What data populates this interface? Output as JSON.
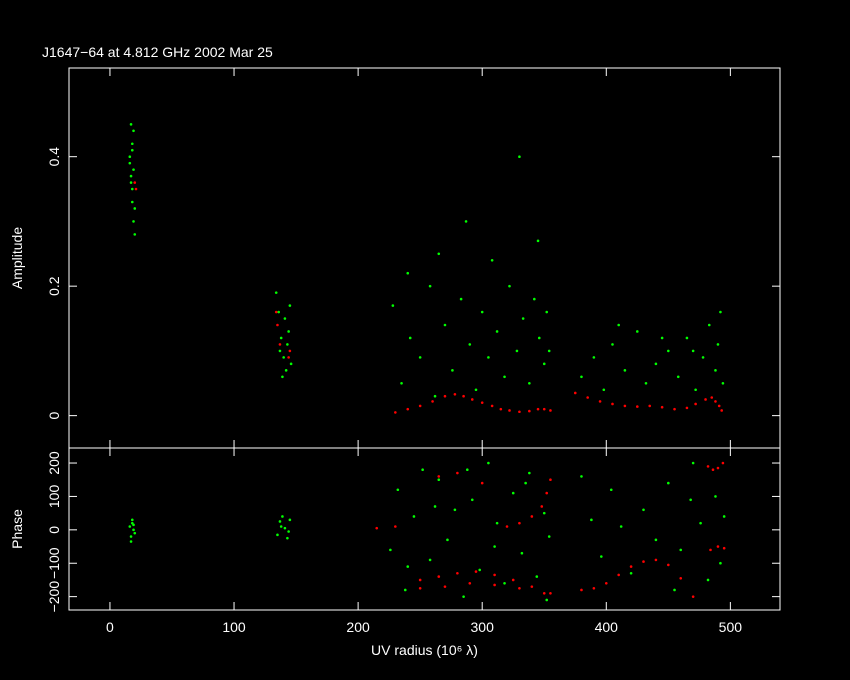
{
  "chart_data": [
    {
      "type": "scatter",
      "title": "J1647−64 at 4.812 GHz 2002 Mar 25",
      "ylabel": "Amplitude",
      "xlim": [
        -33,
        540
      ],
      "xticks": [
        0,
        100,
        200,
        300,
        400,
        500
      ],
      "ylim": [
        -0.05,
        0.537
      ],
      "yticks": [
        0,
        0.2,
        0.4
      ],
      "series": [
        {
          "color": "#00ff00",
          "x": [
            17,
            18,
            16,
            19,
            17,
            18,
            19,
            20,
            16,
            18,
            17,
            19,
            18,
            20,
            134,
            136,
            138,
            140,
            142,
            144,
            145,
            139,
            137,
            143,
            141,
            146,
            228,
            235,
            242,
            250,
            258,
            262,
            270,
            276,
            283,
            290,
            295,
            300,
            305,
            312,
            318,
            322,
            328,
            333,
            338,
            342,
            346,
            350,
            352,
            354,
            240,
            265,
            287,
            308,
            330,
            345,
            380,
            390,
            398,
            405,
            415,
            425,
            432,
            440,
            450,
            458,
            465,
            472,
            478,
            483,
            488,
            490,
            492,
            494,
            410,
            445,
            470
          ],
          "values": [
            0.45,
            0.42,
            0.4,
            0.38,
            0.36,
            0.33,
            0.3,
            0.28,
            0.39,
            0.41,
            0.37,
            0.44,
            0.35,
            0.32,
            0.19,
            0.16,
            0.12,
            0.09,
            0.07,
            0.13,
            0.17,
            0.06,
            0.1,
            0.11,
            0.15,
            0.08,
            0.17,
            0.05,
            0.12,
            0.09,
            0.2,
            0.03,
            0.14,
            0.07,
            0.18,
            0.11,
            0.04,
            0.16,
            0.09,
            0.13,
            0.06,
            0.2,
            0.1,
            0.15,
            0.05,
            0.18,
            0.12,
            0.08,
            0.16,
            0.1,
            0.22,
            0.25,
            0.3,
            0.24,
            0.4,
            0.27,
            0.06,
            0.09,
            0.04,
            0.11,
            0.07,
            0.13,
            0.05,
            0.08,
            0.1,
            0.06,
            0.12,
            0.04,
            0.09,
            0.14,
            0.07,
            0.11,
            0.16,
            0.05,
            0.14,
            0.12,
            0.1
          ]
        },
        {
          "color": "#ff0000",
          "x": [
            20,
            21,
            134,
            135,
            137,
            144,
            145,
            230,
            240,
            250,
            260,
            270,
            278,
            285,
            292,
            300,
            308,
            315,
            322,
            330,
            338,
            345,
            350,
            355,
            375,
            385,
            395,
            405,
            415,
            425,
            435,
            445,
            455,
            465,
            472,
            480,
            485,
            488,
            491,
            493
          ],
          "values": [
            0.36,
            0.35,
            0.16,
            0.14,
            0.11,
            0.09,
            0.1,
            0.005,
            0.01,
            0.015,
            0.022,
            0.03,
            0.033,
            0.03,
            0.025,
            0.02,
            0.015,
            0.01,
            0.008,
            0.006,
            0.007,
            0.01,
            0.01,
            0.008,
            0.035,
            0.028,
            0.022,
            0.018,
            0.015,
            0.014,
            0.015,
            0.013,
            0.01,
            0.012,
            0.018,
            0.025,
            0.028,
            0.022,
            0.015,
            0.008
          ]
        }
      ]
    },
    {
      "type": "scatter",
      "ylabel": "Phase",
      "xlabel": "UV radius  (10⁶ λ)",
      "xlim": [
        -33,
        540
      ],
      "xticks": [
        0,
        100,
        200,
        300,
        400,
        500
      ],
      "ylim": [
        -240,
        245
      ],
      "yticks": [
        {
          "value": -200,
          "label": "−200"
        },
        {
          "value": -100,
          "label": "−100"
        },
        0,
        100,
        200
      ],
      "series": [
        {
          "color": "#00ff00",
          "x": [
            16,
            17,
            18,
            19,
            20,
            18,
            17,
            19,
            135,
            137,
            139,
            141,
            143,
            145,
            138,
            144,
            226,
            232,
            238,
            245,
            252,
            258,
            265,
            272,
            278,
            285,
            292,
            298,
            305,
            312,
            318,
            325,
            332,
            338,
            344,
            350,
            354,
            240,
            262,
            288,
            310,
            335,
            352,
            380,
            388,
            396,
            404,
            412,
            420,
            430,
            440,
            450,
            460,
            468,
            476,
            482,
            488,
            492,
            495,
            470,
            455
          ],
          "values": [
            10,
            -20,
            30,
            0,
            -10,
            20,
            -35,
            15,
            -15,
            25,
            40,
            5,
            -25,
            30,
            10,
            -5,
            -60,
            120,
            -180,
            40,
            180,
            -90,
            150,
            -30,
            60,
            -200,
            90,
            -120,
            200,
            20,
            -160,
            110,
            -70,
            170,
            -140,
            50,
            -20,
            -110,
            70,
            180,
            -50,
            140,
            -210,
            160,
            30,
            -80,
            120,
            10,
            -130,
            60,
            -30,
            140,
            -60,
            90,
            20,
            -150,
            100,
            -100,
            40,
            200,
            -180
          ]
        },
        {
          "color": "#ff0000",
          "x": [
            215,
            230,
            250,
            265,
            280,
            295,
            310,
            325,
            340,
            355,
            250,
            270,
            290,
            310,
            330,
            350,
            320,
            330,
            340,
            348,
            352,
            355,
            265,
            280,
            300,
            380,
            390,
            400,
            410,
            420,
            430,
            440,
            450,
            460,
            470,
            482,
            486,
            490,
            494,
            484,
            490,
            495
          ],
          "values": [
            5,
            10,
            -150,
            -140,
            -130,
            -125,
            -135,
            -150,
            -170,
            -190,
            -175,
            -170,
            -160,
            -165,
            -175,
            -190,
            10,
            20,
            40,
            70,
            110,
            150,
            160,
            170,
            140,
            -180,
            -175,
            -160,
            -135,
            -110,
            -95,
            -90,
            -105,
            -145,
            -200,
            190,
            180,
            185,
            200,
            -60,
            -50,
            -55
          ]
        }
      ]
    }
  ]
}
